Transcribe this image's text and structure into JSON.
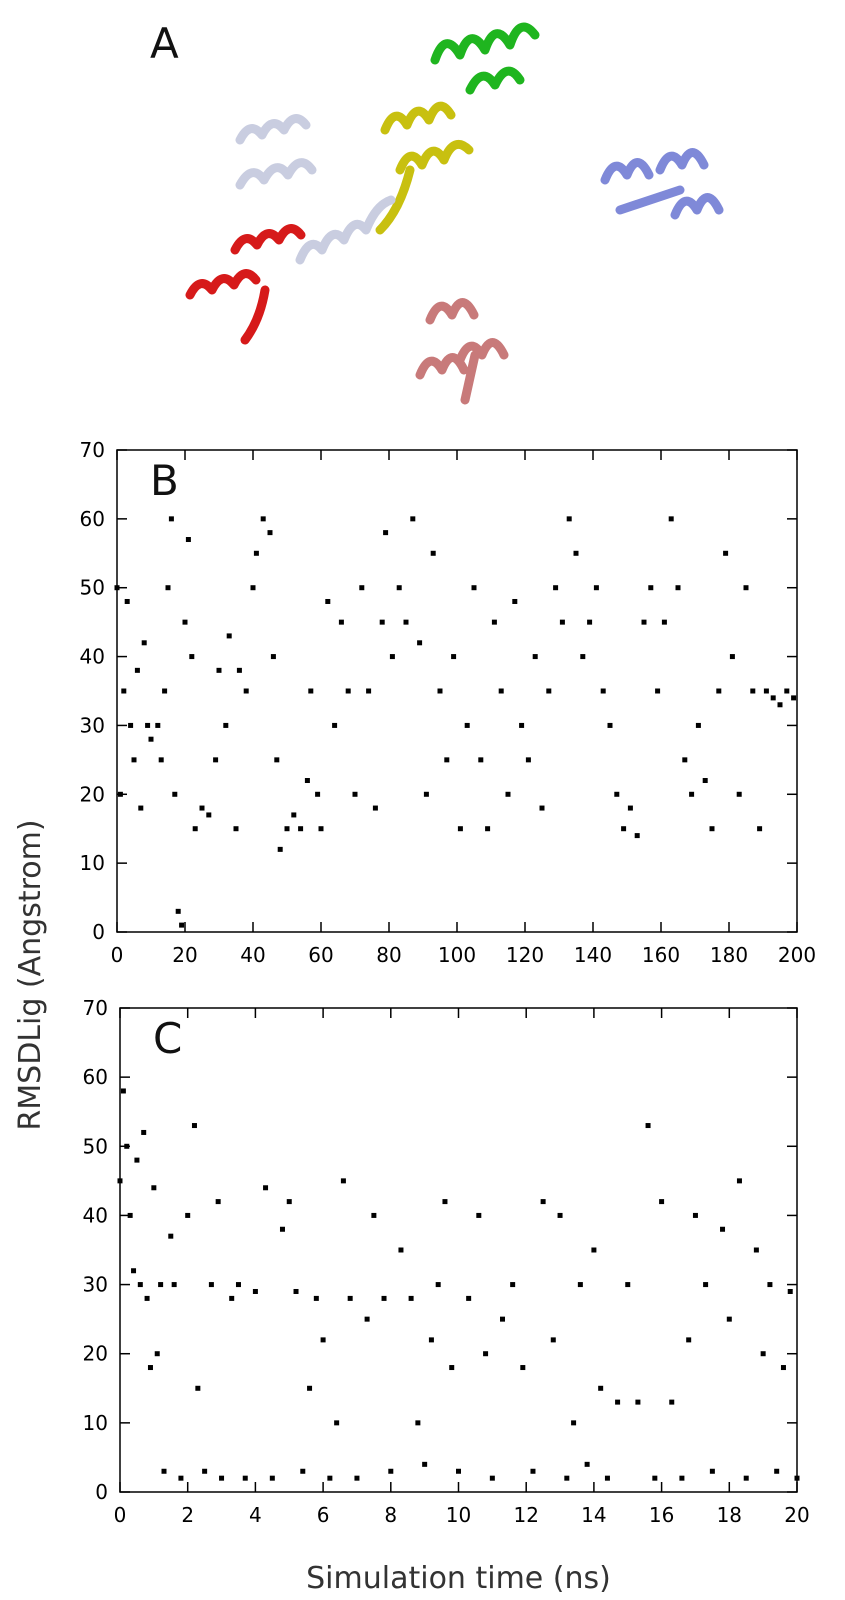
{
  "panel_a": {
    "label": "A"
  },
  "chart_data": [
    {
      "type": "scatter",
      "label": "B",
      "color": "#000000",
      "xlim": [
        0,
        200
      ],
      "ylim": [
        0,
        70
      ],
      "xticks": [
        0,
        20,
        40,
        60,
        80,
        100,
        120,
        140,
        160,
        180,
        200
      ],
      "yticks": [
        0,
        10,
        20,
        30,
        40,
        50,
        60,
        70
      ],
      "x": [
        0,
        1,
        2,
        3,
        4,
        5,
        6,
        7,
        8,
        9,
        10,
        12,
        13,
        14,
        15,
        16,
        17,
        18,
        19,
        20,
        21,
        22,
        23,
        25,
        27,
        29,
        30,
        32,
        33,
        35,
        36,
        38,
        40,
        41,
        43,
        45,
        46,
        47,
        48,
        50,
        52,
        54,
        56,
        57,
        59,
        60,
        62,
        64,
        66,
        68,
        70,
        72,
        74,
        76,
        78,
        79,
        81,
        83,
        85,
        87,
        89,
        91,
        93,
        95,
        97,
        99,
        101,
        103,
        105,
        107,
        109,
        111,
        113,
        115,
        117,
        119,
        121,
        123,
        125,
        127,
        129,
        131,
        133,
        135,
        137,
        139,
        141,
        143,
        145,
        147,
        149,
        151,
        153,
        155,
        157,
        159,
        161,
        163,
        165,
        167,
        169,
        171,
        173,
        175,
        177,
        179,
        181,
        183,
        185,
        187,
        189,
        191,
        193,
        195,
        197,
        199
      ],
      "values": [
        50,
        20,
        35,
        48,
        30,
        25,
        38,
        18,
        42,
        30,
        28,
        30,
        25,
        35,
        50,
        60,
        20,
        3,
        1,
        45,
        57,
        40,
        15,
        18,
        17,
        25,
        38,
        30,
        43,
        15,
        38,
        35,
        50,
        55,
        60,
        58,
        40,
        25,
        12,
        15,
        17,
        15,
        22,
        35,
        20,
        15,
        48,
        30,
        45,
        35,
        20,
        50,
        35,
        18,
        45,
        58,
        40,
        50,
        45,
        60,
        42,
        20,
        55,
        35,
        25,
        40,
        15,
        30,
        50,
        25,
        15,
        45,
        35,
        20,
        48,
        30,
        25,
        40,
        18,
        35,
        50,
        45,
        60,
        55,
        40,
        45,
        50,
        35,
        30,
        20,
        15,
        18,
        14,
        45,
        50,
        35,
        45,
        60,
        50,
        25,
        20,
        30,
        22,
        15,
        35,
        55,
        40,
        20,
        50,
        35,
        15,
        35,
        34,
        33,
        35,
        34
      ]
    },
    {
      "type": "scatter",
      "label": "C",
      "color": "#000000",
      "xlabel": "Simulation time (ns)",
      "ylabel": "RMSDLig (Angstrom)",
      "xlim": [
        0,
        20
      ],
      "ylim": [
        0,
        70
      ],
      "xticks": [
        0,
        2,
        4,
        6,
        8,
        10,
        12,
        14,
        16,
        18,
        20
      ],
      "yticks": [
        0,
        10,
        20,
        30,
        40,
        50,
        60,
        70
      ],
      "x": [
        0,
        0.1,
        0.2,
        0.3,
        0.4,
        0.5,
        0.6,
        0.7,
        0.8,
        0.9,
        1.0,
        1.1,
        1.2,
        1.3,
        1.5,
        1.6,
        1.8,
        2.0,
        2.2,
        2.3,
        2.5,
        2.7,
        2.9,
        3.0,
        3.3,
        3.5,
        3.7,
        4.0,
        4.3,
        4.5,
        4.8,
        5.0,
        5.2,
        5.4,
        5.6,
        5.8,
        6.0,
        6.2,
        6.4,
        6.6,
        6.8,
        7.0,
        7.3,
        7.5,
        7.8,
        8.0,
        8.3,
        8.6,
        8.8,
        9.0,
        9.2,
        9.4,
        9.6,
        9.8,
        10.0,
        10.3,
        10.6,
        10.8,
        11.0,
        11.3,
        11.6,
        11.9,
        12.2,
        12.5,
        12.8,
        13.0,
        13.2,
        13.4,
        13.6,
        13.8,
        14.0,
        14.2,
        14.4,
        14.7,
        15.0,
        15.3,
        15.6,
        15.8,
        16.0,
        16.3,
        16.6,
        16.8,
        17.0,
        17.3,
        17.5,
        17.8,
        18.0,
        18.3,
        18.5,
        18.8,
        19.0,
        19.2,
        19.4,
        19.6,
        19.8,
        20.0
      ],
      "values": [
        45,
        58,
        50,
        40,
        32,
        48,
        30,
        52,
        28,
        18,
        44,
        20,
        30,
        3,
        37,
        30,
        2,
        40,
        53,
        15,
        3,
        30,
        42,
        2,
        28,
        30,
        2,
        29,
        44,
        2,
        38,
        42,
        29,
        3,
        15,
        28,
        22,
        2,
        10,
        45,
        28,
        2,
        25,
        40,
        28,
        3,
        35,
        28,
        10,
        4,
        22,
        30,
        42,
        18,
        3,
        28,
        40,
        20,
        2,
        25,
        30,
        18,
        3,
        42,
        22,
        40,
        2,
        10,
        30,
        4,
        35,
        15,
        2,
        13,
        30,
        13,
        53,
        2,
        42,
        13,
        2,
        22,
        40,
        30,
        3,
        38,
        25,
        45,
        2,
        35,
        20,
        30,
        3,
        18,
        29,
        2
      ]
    }
  ]
}
